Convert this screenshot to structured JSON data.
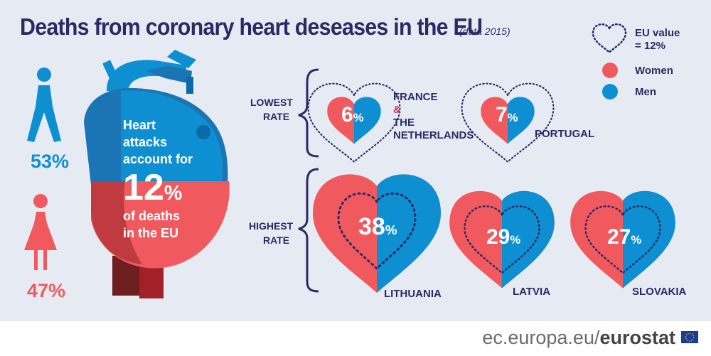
{
  "title": "Deaths from coronary heart deseases in the EU",
  "subtitle": "(data 2015)",
  "legend": {
    "eu_value": "EU value",
    "eu_value_eq": "= 12%",
    "women": "Women",
    "men": "Men"
  },
  "colors": {
    "women": "#f05a5f",
    "men": "#0e8fd2",
    "navy": "#2b2a63",
    "background": "#e6ebf3"
  },
  "people": {
    "men_pct": "53%",
    "women_pct": "47%"
  },
  "heart": {
    "line1": "Heart",
    "line2": "attacks",
    "line3": "account for",
    "value": "12",
    "value_unit": "%",
    "line4": "of deaths",
    "line5": "in the EU"
  },
  "groups": {
    "lowest_line1": "LOWEST",
    "lowest_line2": "RATE",
    "highest_line1": "HIGHEST",
    "highest_line2": "RATE"
  },
  "countries": [
    {
      "name": "FRANCE",
      "amp": "&",
      "name2": "THE",
      "name3": "NETHERLANDS",
      "value": "6",
      "unit": "%"
    },
    {
      "name": "PORTUGAL",
      "value": "7",
      "unit": "%"
    },
    {
      "name": "LITHUANIA",
      "value": "38",
      "unit": "%"
    },
    {
      "name": "LATVIA",
      "value": "29",
      "unit": "%"
    },
    {
      "name": "SLOVAKIA",
      "value": "27",
      "unit": "%"
    }
  ],
  "footer": {
    "domain": "ec.europa.eu/",
    "brand": "eurostat"
  }
}
